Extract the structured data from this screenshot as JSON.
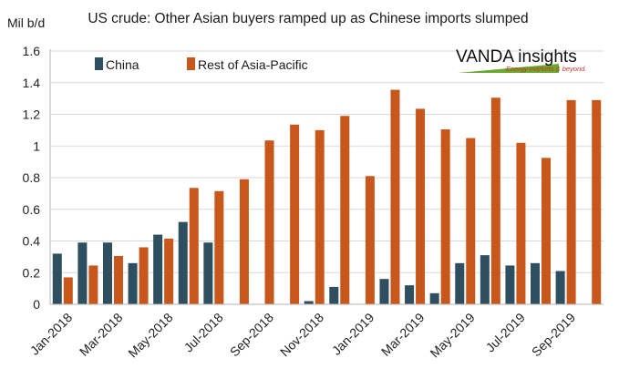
{
  "chart_data": {
    "type": "bar",
    "title": "US crude: Other Asian buyers ramped up as Chinese imports slumped",
    "ylabel": "Mil b/d",
    "xlabel": "",
    "ylim": [
      0,
      1.6
    ],
    "yticks": [
      "0",
      "0.2",
      "0.4",
      "0.6",
      "0.8",
      "1",
      "1.2",
      "1.4",
      "1.6"
    ],
    "grid": "horizontal",
    "legend_position": "top-left",
    "categories": [
      "Jan-2018",
      "Feb-2018",
      "Mar-2018",
      "Apr-2018",
      "May-2018",
      "Jun-2018",
      "Jul-2018",
      "Aug-2018",
      "Sep-2018",
      "Oct-2018",
      "Nov-2018",
      "Dec-2018",
      "Jan-2019",
      "Feb-2019",
      "Mar-2019",
      "Apr-2019",
      "May-2019",
      "Jun-2019",
      "Jul-2019",
      "Aug-2019",
      "Sep-2019",
      "Oct-2019"
    ],
    "tick_labels": [
      "Jan-2018",
      "Mar-2018",
      "May-2018",
      "Jul-2018",
      "Sep-2018",
      "Nov-2018",
      "Jan-2019",
      "Mar-2019",
      "May-2019",
      "Jul-2019",
      "Sep-2019"
    ],
    "series": [
      {
        "name": "China",
        "color": "#2e4f5f",
        "values": [
          0.32,
          0.39,
          0.39,
          0.26,
          0.44,
          0.52,
          0.39,
          0,
          0,
          0,
          0.02,
          0.11,
          0,
          0.16,
          0.12,
          0.07,
          0.26,
          0.31,
          0.245,
          0.26,
          0.21,
          0
        ]
      },
      {
        "name": "Rest of Asia-Pacific",
        "color": "#c8571b",
        "values": [
          0.17,
          0.245,
          0.305,
          0.36,
          0.415,
          0.735,
          0.715,
          0.79,
          1.035,
          1.135,
          1.1,
          1.19,
          0.81,
          1.355,
          1.235,
          1.105,
          1.05,
          1.305,
          1.02,
          0.925,
          1.29,
          1.29
        ]
      }
    ]
  },
  "logo": {
    "name": "VANDA insights",
    "tagline": "Energy markets & beyond."
  }
}
